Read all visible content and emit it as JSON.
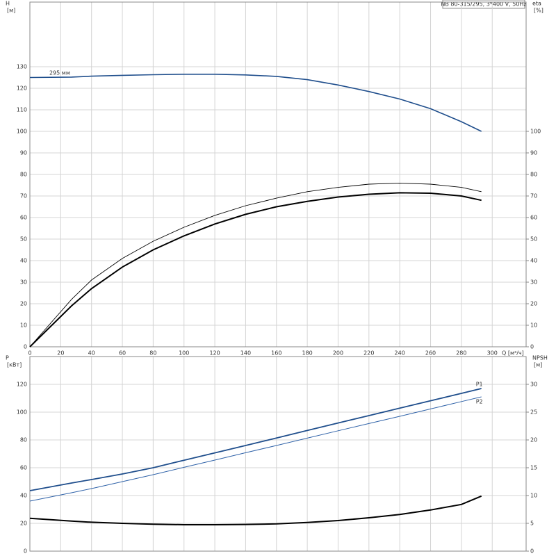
{
  "chart_data": [
    {
      "type": "line",
      "title": "NB 80-315/295, 3*400 V, 50Hz",
      "ylabel": "H",
      "yunit": "[м]",
      "y2label": "eta",
      "y2unit": "[%]",
      "xlabel": "Q [м³/ч]",
      "xlim": [
        0,
        322
      ],
      "xticks": [
        0,
        20,
        40,
        60,
        80,
        100,
        120,
        140,
        160,
        180,
        200,
        220,
        240,
        260,
        280,
        300
      ],
      "ylim": [
        0,
        160
      ],
      "yticks": [
        0,
        10,
        20,
        30,
        40,
        50,
        60,
        70,
        80,
        90,
        100,
        110,
        120,
        130
      ],
      "y2lim": [
        0,
        160
      ],
      "y2ticks": [
        0,
        10,
        20,
        30,
        40,
        50,
        60,
        70,
        80,
        90,
        100
      ],
      "grid": true,
      "x": [
        0,
        27,
        40,
        60,
        80,
        100,
        120,
        140,
        160,
        180,
        200,
        220,
        240,
        260,
        280,
        293
      ],
      "series": [
        {
          "name": "295 мм",
          "color": "#1f4e8c",
          "values": [
            125,
            125.2,
            125.6,
            126,
            126.3,
            126.5,
            126.5,
            126.2,
            125.5,
            124,
            121.5,
            118.5,
            115,
            110.5,
            104.5,
            100
          ]
        },
        {
          "color": "#000000",
          "axis": "y2",
          "values": [
            0,
            22,
            31,
            41,
            49,
            55.5,
            61,
            65.5,
            69,
            72,
            74,
            75.5,
            76,
            75.5,
            74,
            72
          ]
        },
        {
          "color": "#000000",
          "axis": "y2",
          "values": [
            0,
            19,
            27,
            37,
            45,
            51.5,
            57,
            61.5,
            65,
            67.5,
            69.5,
            70.8,
            71.5,
            71.3,
            70,
            68
          ]
        }
      ]
    },
    {
      "type": "line",
      "ylabel": "P",
      "yunit": "[кВт]",
      "y2label": "NPSH",
      "y2unit": "[м]",
      "xlim": [
        0,
        322
      ],
      "ylim": [
        0,
        140
      ],
      "yticks": [
        0,
        20,
        40,
        60,
        80,
        100,
        120
      ],
      "y2lim": [
        0,
        35
      ],
      "y2ticks": [
        0,
        5,
        10,
        15,
        20,
        25,
        30
      ],
      "grid": true,
      "x": [
        0,
        27,
        40,
        60,
        80,
        100,
        120,
        140,
        160,
        180,
        200,
        220,
        240,
        260,
        280,
        293
      ],
      "series": [
        {
          "name": "P1",
          "color": "#1f4e8c",
          "values": [
            43.5,
            49,
            51.5,
            55.5,
            60,
            65.4,
            70.7,
            76,
            81.4,
            86.8,
            92.2,
            97.5,
            102.9,
            108.2,
            113.5,
            117
          ]
        },
        {
          "name": "P2",
          "color": "#2f62a8",
          "values": [
            36,
            42,
            45,
            50,
            55,
            60.3,
            65.5,
            70.8,
            76,
            81.3,
            86.6,
            91.8,
            97,
            102.3,
            107.6,
            111
          ]
        },
        {
          "color": "#000000",
          "axis": "y2",
          "values": [
            5.9,
            5.4,
            5.2,
            5,
            4.85,
            4.75,
            4.75,
            4.8,
            4.9,
            5.15,
            5.5,
            6,
            6.6,
            7.4,
            8.4,
            9.9
          ]
        }
      ]
    }
  ]
}
